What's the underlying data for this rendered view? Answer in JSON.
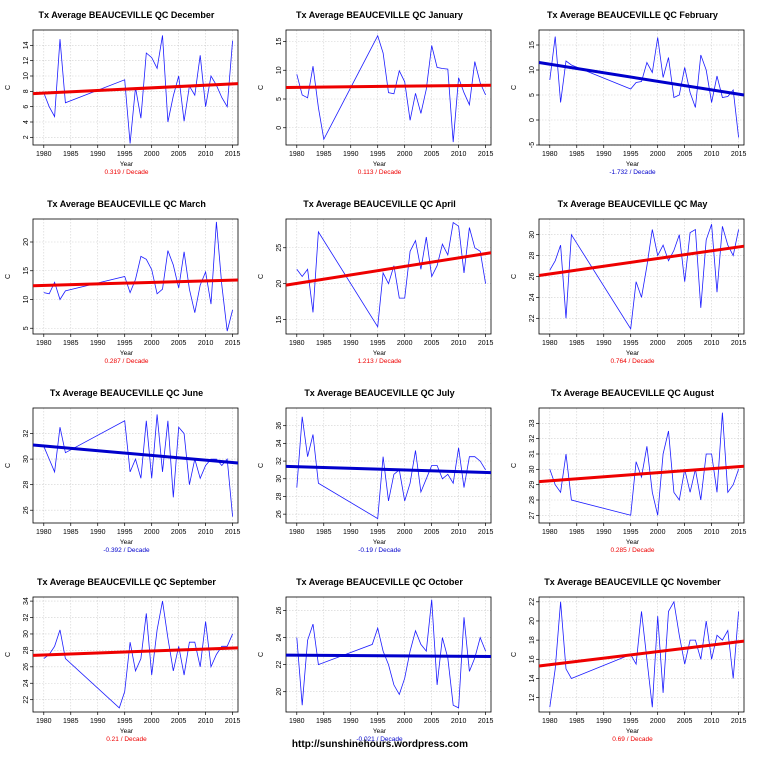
{
  "footer": "http://sunshinehours.wordpress.com",
  "colors": {
    "up": "#ee0000",
    "down": "#0000cc",
    "series": "#1c1cff",
    "grid": "#d0d0d0"
  },
  "chart_data": [
    {
      "type": "line",
      "title": "Tx Average BEAUCEVILLE QC December",
      "xlabel": "Year",
      "ylabel": "C",
      "xlim": [
        1978,
        2016
      ],
      "ylim": [
        1,
        16
      ],
      "yticks": [
        2,
        4,
        6,
        8,
        10,
        12,
        14
      ],
      "xticks": [
        1980,
        1985,
        1990,
        1995,
        2000,
        2005,
        2010,
        2015
      ],
      "trend_text": "0.319  / Decade",
      "trend_color": "#ee0000",
      "trend_start": 7.7,
      "trend_end": 9.0,
      "series": [
        {
          "x": [
            1980,
            1981,
            1982,
            1983,
            1984,
            1995,
            1996,
            1997,
            1998,
            1999,
            2000,
            2001,
            2002,
            2003,
            2004,
            2005,
            2006,
            2007,
            2008,
            2009,
            2010,
            2011,
            2012,
            2013,
            2014,
            2015
          ],
          "y": [
            7.8,
            6.0,
            4.7,
            14.8,
            6.5,
            9.5,
            1.2,
            8.5,
            4.5,
            13.0,
            12.4,
            11.0,
            15.3,
            4.0,
            7.4,
            10.0,
            4.1,
            8.7,
            7.5,
            12.7,
            6.0,
            10.0,
            8.8,
            7.2,
            6.0,
            14.6
          ]
        }
      ]
    },
    {
      "type": "line",
      "title": "Tx Average BEAUCEVILLE QC January",
      "xlabel": "Year",
      "ylabel": "C",
      "xlim": [
        1978,
        2016
      ],
      "ylim": [
        -3,
        17
      ],
      "yticks": [
        0,
        5,
        10,
        15
      ],
      "xticks": [
        1980,
        1985,
        1990,
        1995,
        2000,
        2005,
        2010,
        2015
      ],
      "trend_text": "0.113  / Decade",
      "trend_color": "#ee0000",
      "trend_start": 7.0,
      "trend_end": 7.4,
      "series": [
        {
          "x": [
            1980,
            1981,
            1982,
            1983,
            1984,
            1985,
            1995,
            1996,
            1997,
            1998,
            1999,
            2000,
            2001,
            2002,
            2003,
            2004,
            2005,
            2006,
            2007,
            2008,
            2009,
            2010,
            2011,
            2012,
            2013,
            2014,
            2015
          ],
          "y": [
            9.3,
            5.7,
            5.2,
            10.7,
            3.5,
            -2.0,
            16.0,
            13.0,
            6.1,
            5.9,
            9.9,
            8.0,
            1.3,
            6.0,
            2.5,
            6.7,
            14.3,
            10.5,
            10.3,
            10.2,
            -2.5,
            8.7,
            6.1,
            4.0,
            11.5,
            7.8,
            5.7
          ]
        }
      ]
    },
    {
      "type": "line",
      "title": "Tx Average BEAUCEVILLE QC February",
      "xlabel": "Year",
      "ylabel": "C",
      "xlim": [
        1978,
        2016
      ],
      "ylim": [
        -5,
        18
      ],
      "yticks": [
        -5,
        0,
        5,
        10,
        15
      ],
      "xticks": [
        1980,
        1985,
        1990,
        1995,
        2000,
        2005,
        2010,
        2015
      ],
      "trend_text": "-1.732  / Decade",
      "trend_color": "#0000cc",
      "trend_start": 11.5,
      "trend_end": 5.0,
      "series": [
        {
          "x": [
            1980,
            1981,
            1982,
            1983,
            1984,
            1995,
            1996,
            1997,
            1998,
            1999,
            2000,
            2001,
            2002,
            2003,
            2004,
            2005,
            2006,
            2007,
            2008,
            2009,
            2010,
            2011,
            2012,
            2013,
            2014,
            2015
          ],
          "y": [
            8.0,
            16.7,
            3.5,
            11.8,
            11.0,
            6.2,
            7.5,
            7.7,
            11.5,
            9.5,
            16.5,
            8.5,
            12.5,
            4.5,
            5.0,
            10.5,
            5.5,
            2.5,
            13.0,
            10.0,
            3.5,
            8.8,
            4.5,
            4.7,
            6.0,
            -3.5
          ]
        }
      ]
    },
    {
      "type": "line",
      "title": "Tx Average BEAUCEVILLE QC March",
      "xlabel": "Year",
      "ylabel": "C",
      "xlim": [
        1978,
        2016
      ],
      "ylim": [
        4,
        24
      ],
      "yticks": [
        5,
        10,
        15,
        20
      ],
      "xticks": [
        1980,
        1985,
        1990,
        1995,
        2000,
        2005,
        2010,
        2015
      ],
      "trend_text": "0.287  / Decade",
      "trend_color": "#ee0000",
      "trend_start": 12.4,
      "trend_end": 13.4,
      "series": [
        {
          "x": [
            1980,
            1981,
            1982,
            1983,
            1984,
            1995,
            1996,
            1997,
            1998,
            1999,
            2000,
            2001,
            2002,
            2003,
            2004,
            2005,
            2006,
            2007,
            2008,
            2009,
            2010,
            2011,
            2012,
            2013,
            2014,
            2015
          ],
          "y": [
            11.2,
            11.0,
            13.0,
            10.0,
            11.5,
            14.0,
            11.2,
            13.5,
            17.5,
            17.0,
            15.2,
            11.0,
            11.8,
            18.5,
            16.0,
            12.0,
            18.3,
            11.8,
            7.7,
            12.5,
            14.8,
            9.2,
            23.5,
            12.5,
            4.5,
            8.2
          ]
        }
      ]
    },
    {
      "type": "line",
      "title": "Tx Average BEAUCEVILLE QC April",
      "xlabel": "Year",
      "ylabel": "C",
      "xlim": [
        1978,
        2016
      ],
      "ylim": [
        13,
        29
      ],
      "yticks": [
        15,
        20,
        25
      ],
      "xticks": [
        1980,
        1985,
        1990,
        1995,
        2000,
        2005,
        2010,
        2015
      ],
      "trend_text": "1.213  / Decade",
      "trend_color": "#ee0000",
      "trend_start": 19.8,
      "trend_end": 24.3,
      "series": [
        {
          "x": [
            1980,
            1981,
            1982,
            1983,
            1984,
            1995,
            1996,
            1997,
            1998,
            1999,
            2000,
            2001,
            2002,
            2003,
            2004,
            2005,
            2006,
            2007,
            2008,
            2009,
            2010,
            2011,
            2012,
            2013,
            2014,
            2015
          ],
          "y": [
            22.0,
            21.0,
            22.0,
            16.0,
            27.2,
            14.0,
            21.5,
            20.0,
            22.5,
            18.0,
            18.0,
            24.5,
            26.0,
            22.0,
            26.5,
            21.0,
            22.5,
            25.5,
            24.0,
            28.5,
            28.0,
            21.5,
            27.8,
            25.0,
            24.5,
            20.0
          ]
        }
      ]
    },
    {
      "type": "line",
      "title": "Tx Average BEAUCEVILLE QC May",
      "xlabel": "Year",
      "ylabel": "C",
      "xlim": [
        1978,
        2016
      ],
      "ylim": [
        20.5,
        31.5
      ],
      "yticks": [
        22,
        24,
        26,
        28,
        30
      ],
      "xticks": [
        1980,
        1985,
        1990,
        1995,
        2000,
        2005,
        2010,
        2015
      ],
      "trend_text": "0.764  / Decade",
      "trend_color": "#ee0000",
      "trend_start": 26.1,
      "trend_end": 28.9,
      "series": [
        {
          "x": [
            1980,
            1981,
            1982,
            1983,
            1984,
            1995,
            1996,
            1997,
            1998,
            1999,
            2000,
            2001,
            2002,
            2003,
            2004,
            2005,
            2006,
            2007,
            2008,
            2009,
            2010,
            2011,
            2012,
            2013,
            2014,
            2015
          ],
          "y": [
            26.6,
            27.5,
            29.0,
            22.0,
            30.0,
            21.0,
            25.5,
            24.0,
            27.0,
            30.5,
            28.0,
            29.0,
            27.5,
            28.5,
            30.0,
            25.5,
            30.2,
            30.5,
            23.0,
            29.5,
            31.0,
            24.5,
            30.8,
            29.0,
            28.0,
            30.5
          ]
        }
      ]
    },
    {
      "type": "line",
      "title": "Tx Average BEAUCEVILLE QC June",
      "xlabel": "Year",
      "ylabel": "C",
      "xlim": [
        1978,
        2016
      ],
      "ylim": [
        25,
        34
      ],
      "yticks": [
        26,
        28,
        30,
        32
      ],
      "xticks": [
        1980,
        1985,
        1990,
        1995,
        2000,
        2005,
        2010,
        2015
      ],
      "trend_text": "-0.392  / Decade",
      "trend_color": "#0000cc",
      "trend_start": 31.1,
      "trend_end": 29.7,
      "series": [
        {
          "x": [
            1980,
            1981,
            1982,
            1983,
            1984,
            1995,
            1996,
            1997,
            1998,
            1999,
            2000,
            2001,
            2002,
            2003,
            2004,
            2005,
            2006,
            2007,
            2008,
            2009,
            2010,
            2011,
            2012,
            2013,
            2014,
            2015
          ],
          "y": [
            31.0,
            30.0,
            29.0,
            32.5,
            30.5,
            33.0,
            29.0,
            30.0,
            28.5,
            33.0,
            28.5,
            33.5,
            29.0,
            33.0,
            27.0,
            32.5,
            32.0,
            28.0,
            30.0,
            28.5,
            29.5,
            30.0,
            30.0,
            29.5,
            30.0,
            25.5
          ]
        }
      ]
    },
    {
      "type": "line",
      "title": "Tx Average BEAUCEVILLE QC July",
      "xlabel": "Year",
      "ylabel": "C",
      "xlim": [
        1978,
        2016
      ],
      "ylim": [
        25,
        38
      ],
      "yticks": [
        26,
        28,
        30,
        32,
        34,
        36
      ],
      "xticks": [
        1980,
        1985,
        1990,
        1995,
        2000,
        2005,
        2010,
        2015
      ],
      "trend_text": "-0.19  / Decade",
      "trend_color": "#0000cc",
      "trend_start": 31.4,
      "trend_end": 30.7,
      "series": [
        {
          "x": [
            1980,
            1981,
            1982,
            1983,
            1984,
            1995,
            1996,
            1997,
            1998,
            1999,
            2000,
            2001,
            2002,
            2003,
            2004,
            2005,
            2006,
            2007,
            2008,
            2009,
            2010,
            2011,
            2012,
            2013,
            2014,
            2015
          ],
          "y": [
            29.0,
            37.0,
            32.5,
            35.0,
            29.5,
            25.5,
            32.5,
            27.5,
            30.5,
            31.0,
            27.5,
            29.5,
            33.2,
            28.5,
            30.0,
            31.5,
            31.5,
            30.0,
            30.5,
            29.5,
            33.5,
            29.0,
            32.5,
            32.5,
            32.0,
            31.0
          ]
        }
      ]
    },
    {
      "type": "line",
      "title": "Tx Average BEAUCEVILLE QC August",
      "xlabel": "Year",
      "ylabel": "C",
      "xlim": [
        1978,
        2016
      ],
      "ylim": [
        26.5,
        34
      ],
      "yticks": [
        27,
        28,
        29,
        30,
        31,
        32,
        33
      ],
      "xticks": [
        1980,
        1985,
        1990,
        1995,
        2000,
        2005,
        2010,
        2015
      ],
      "trend_text": "0.285  / Decade",
      "trend_color": "#ee0000",
      "trend_start": 29.2,
      "trend_end": 30.2,
      "series": [
        {
          "x": [
            1980,
            1981,
            1982,
            1983,
            1984,
            1995,
            1996,
            1997,
            1998,
            1999,
            2000,
            2001,
            2002,
            2003,
            2004,
            2005,
            2006,
            2007,
            2008,
            2009,
            2010,
            2011,
            2012,
            2013,
            2014,
            2015
          ],
          "y": [
            30.0,
            29.0,
            28.5,
            31.0,
            28.0,
            27.0,
            30.5,
            29.5,
            31.5,
            28.5,
            27.0,
            31.0,
            32.5,
            28.5,
            28.0,
            30.0,
            28.5,
            30.0,
            28.0,
            31.0,
            31.0,
            28.5,
            33.7,
            28.5,
            29.0,
            30.0
          ]
        }
      ]
    },
    {
      "type": "line",
      "title": "Tx Average BEAUCEVILLE QC September",
      "xlabel": "Year",
      "ylabel": "C",
      "xlim": [
        1978,
        2016
      ],
      "ylim": [
        20.5,
        34.5
      ],
      "yticks": [
        22,
        24,
        26,
        28,
        30,
        32,
        34
      ],
      "xticks": [
        1980,
        1985,
        1990,
        1995,
        2000,
        2005,
        2010,
        2015
      ],
      "trend_text": "0.21  / Decade",
      "trend_color": "#ee0000",
      "trend_start": 27.4,
      "trend_end": 28.3,
      "series": [
        {
          "x": [
            1980,
            1981,
            1982,
            1983,
            1984,
            1994,
            1995,
            1996,
            1997,
            1998,
            1999,
            2000,
            2001,
            2002,
            2003,
            2004,
            2005,
            2006,
            2007,
            2008,
            2009,
            2010,
            2011,
            2012,
            2013,
            2014,
            2015
          ],
          "y": [
            27.0,
            27.5,
            28.5,
            30.5,
            27.0,
            21.0,
            23.0,
            29.0,
            25.5,
            27.0,
            32.5,
            25.0,
            30.5,
            34.0,
            29.5,
            25.5,
            28.5,
            25.0,
            29.0,
            29.0,
            26.0,
            31.5,
            26.0,
            27.5,
            28.5,
            28.5,
            30.0
          ]
        }
      ]
    },
    {
      "type": "line",
      "title": "Tx Average BEAUCEVILLE QC October",
      "xlabel": "Year",
      "ylabel": "C",
      "xlim": [
        1978,
        2016
      ],
      "ylim": [
        18.5,
        27
      ],
      "yticks": [
        20,
        22,
        24,
        26
      ],
      "xticks": [
        1980,
        1985,
        1990,
        1995,
        2000,
        2005,
        2010,
        2015
      ],
      "trend_text": "-0.021  / Decade",
      "trend_color": "#0000cc",
      "trend_start": 22.7,
      "trend_end": 22.6,
      "series": [
        {
          "x": [
            1980,
            1981,
            1982,
            1983,
            1984,
            1994,
            1995,
            1996,
            1997,
            1998,
            1999,
            2000,
            2001,
            2002,
            2003,
            2004,
            2005,
            2006,
            2007,
            2008,
            2009,
            2010,
            2011,
            2012,
            2013,
            2014,
            2015
          ],
          "y": [
            24.0,
            19.0,
            23.8,
            25.0,
            22.0,
            23.5,
            24.7,
            23.0,
            22.0,
            20.5,
            19.8,
            21.0,
            23.0,
            24.5,
            23.5,
            23.0,
            26.8,
            20.5,
            24.0,
            22.5,
            19.0,
            18.8,
            25.5,
            21.5,
            22.5,
            24.0,
            23.0
          ]
        }
      ]
    },
    {
      "type": "line",
      "title": "Tx Average BEAUCEVILLE QC November",
      "xlabel": "Year",
      "ylabel": "C",
      "xlim": [
        1978,
        2016
      ],
      "ylim": [
        10.5,
        22.5
      ],
      "yticks": [
        12,
        14,
        16,
        18,
        20,
        22
      ],
      "xticks": [
        1980,
        1985,
        1990,
        1995,
        2000,
        2005,
        2010,
        2015
      ],
      "trend_text": "0.69  / Decade",
      "trend_color": "#ee0000",
      "trend_start": 15.3,
      "trend_end": 17.9,
      "series": [
        {
          "x": [
            1980,
            1981,
            1982,
            1983,
            1984,
            1995,
            1996,
            1997,
            1998,
            1999,
            2000,
            2001,
            2002,
            2003,
            2004,
            2005,
            2006,
            2007,
            2008,
            2009,
            2010,
            2011,
            2012,
            2013,
            2014,
            2015
          ],
          "y": [
            11.0,
            15.0,
            22.0,
            15.0,
            14.0,
            16.5,
            15.5,
            21.0,
            16.0,
            11.0,
            20.5,
            12.5,
            21.0,
            22.0,
            18.5,
            15.5,
            18.0,
            18.0,
            16.0,
            20.0,
            16.0,
            18.5,
            18.0,
            19.0,
            14.0,
            21.0
          ]
        }
      ]
    }
  ]
}
